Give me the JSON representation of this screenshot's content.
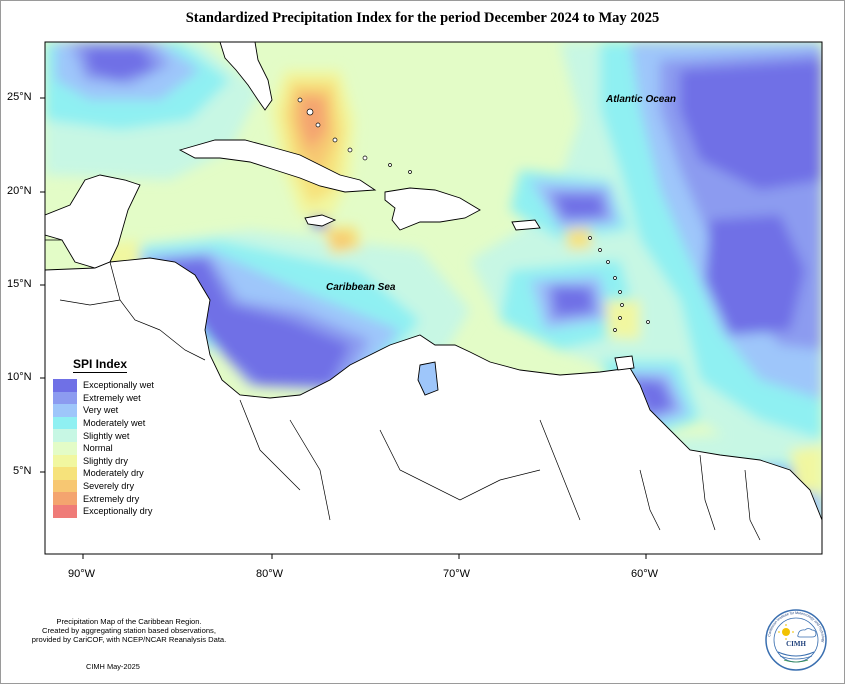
{
  "title": "Standardized Precipitation Index for the period December 2024 to May 2025",
  "axes": {
    "lat_labels": [
      "25°N",
      "20°N",
      "15°N",
      "10°N",
      "5°N"
    ],
    "lon_labels": [
      "90°W",
      "80°W",
      "70°W",
      "60°W"
    ]
  },
  "map_labels": {
    "atlantic": "Atlantic Ocean",
    "caribbean": "Caribbean Sea"
  },
  "legend": {
    "title": "SPI Index",
    "items": [
      {
        "label": "Exceptionally wet",
        "color": "#6f70e6"
      },
      {
        "label": "Extremely wet",
        "color": "#8c9bf0"
      },
      {
        "label": "Very wet",
        "color": "#9ec6fa"
      },
      {
        "label": "Moderately wet",
        "color": "#8ff0f2"
      },
      {
        "label": "Slightly wet",
        "color": "#c7f7e4"
      },
      {
        "label": "Normal",
        "color": "#e3fcc7"
      },
      {
        "label": "Slightly dry",
        "color": "#f1f7a0"
      },
      {
        "label": "Moderately dry",
        "color": "#f6e27b"
      },
      {
        "label": "Severely dry",
        "color": "#f7c772"
      },
      {
        "label": "Extremely dry",
        "color": "#f4a46f"
      },
      {
        "label": "Exceptionally dry",
        "color": "#ef7b78"
      }
    ]
  },
  "credit": {
    "lines": [
      "Precipitation Map of the Caribbean Region.",
      "Created by aggregating station based observations,",
      "provided by CariCOF, with NCEP/NCAR Reanalysis Data."
    ],
    "date": "CIMH May-2025"
  },
  "logo": {
    "text": "CIMH",
    "ring_text": "Caribbean Institute for Meteorology and Hydrology"
  }
}
